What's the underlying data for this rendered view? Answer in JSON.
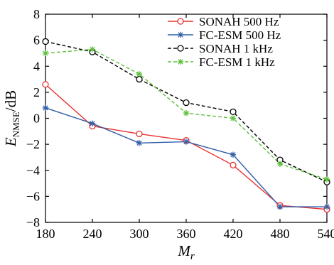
{
  "chart_data": {
    "type": "line",
    "xlabel": "M",
    "xlabel_sub": "r",
    "ylabel": "E",
    "ylabel_sub": "NMSE",
    "ylabel_unit": "/dB",
    "x": [
      180,
      240,
      300,
      360,
      420,
      480,
      540
    ],
    "xlim": [
      180,
      540
    ],
    "ylim": [
      -8,
      8
    ],
    "xticks": [
      "180",
      "240",
      "300",
      "360",
      "420",
      "480",
      "540"
    ],
    "yticks": [
      "8",
      "6",
      "4",
      "2",
      "0",
      "−2",
      "−4",
      "−6",
      "−8"
    ],
    "grid": false,
    "legend_position": "top-right",
    "series": [
      {
        "name": "SONAH 500 Hz",
        "values": [
          2.6,
          -0.6,
          -1.2,
          -1.7,
          -3.6,
          -6.7,
          -7.0
        ],
        "color": "#e8312f",
        "dash": "solid",
        "marker": "circle"
      },
      {
        "name": "FC-ESM 500 Hz",
        "values": [
          0.8,
          -0.4,
          -1.9,
          -1.8,
          -2.8,
          -6.8,
          -6.8
        ],
        "color": "#2f5ea8",
        "dash": "solid",
        "marker": "asterisk"
      },
      {
        "name": "SONAH 1 kHz",
        "values": [
          5.9,
          5.1,
          3.0,
          1.2,
          0.5,
          -3.2,
          -4.9
        ],
        "color": "#000000",
        "dash": "dashed",
        "marker": "circle"
      },
      {
        "name": "FC-ESM 1 kHz",
        "values": [
          5.0,
          5.3,
          3.4,
          0.4,
          0.0,
          -3.5,
          -4.7
        ],
        "color": "#5cbf3a",
        "dash": "dashed",
        "marker": "asterisk"
      }
    ]
  }
}
